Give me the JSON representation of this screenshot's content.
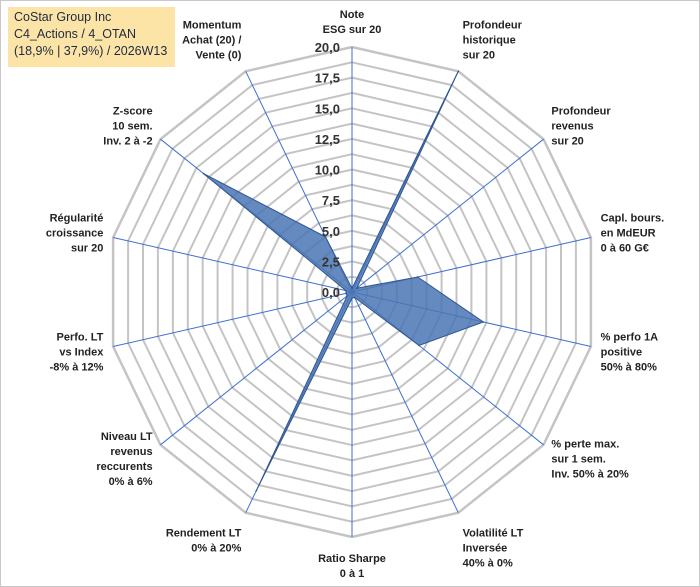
{
  "header": {
    "line1": "CoStar Group Inc",
    "line2": "C4_Actions / 4_OTAN",
    "line3": "(18,9% | 37,9%) / 2026W13"
  },
  "chart_data": {
    "type": "radar",
    "title": "CoStar Group Inc",
    "rlim": [
      0,
      20
    ],
    "ticks": [
      "0,0",
      "2,5",
      "5,0",
      "7,5",
      "10,0",
      "12,5",
      "15,0",
      "17,5",
      "20,0"
    ],
    "tick_values": [
      0,
      2.5,
      5,
      7.5,
      10,
      12.5,
      15,
      17.5,
      20
    ],
    "grid": true,
    "categories": [
      {
        "lines": [
          "Note",
          "ESG sur 20"
        ]
      },
      {
        "lines": [
          "Profondeur",
          "historique",
          "sur 20"
        ]
      },
      {
        "lines": [
          "Profondeur",
          "revenus",
          "sur 20"
        ]
      },
      {
        "lines": [
          "Capl. bours.",
          "en MdEUR",
          "0 à 60 G€"
        ]
      },
      {
        "lines": [
          "% perfo 1A",
          "positive",
          "50% à 80%"
        ]
      },
      {
        "lines": [
          "% perte max.",
          "sur 1 sem.",
          "Inv. 50% à 20%"
        ]
      },
      {
        "lines": [
          "Volatilité LT",
          "Inversée",
          "40% à 0%"
        ]
      },
      {
        "lines": [
          "Ratio Sharpe",
          "0 à 1"
        ]
      },
      {
        "lines": [
          "Rendement LT",
          "0% à 20%"
        ]
      },
      {
        "lines": [
          "Niveau LT",
          "revenus",
          "reccurents",
          "0% à 6%"
        ]
      },
      {
        "lines": [
          "Perfo. LT",
          "vs Index",
          "-8% à 12%"
        ]
      },
      {
        "lines": [
          "Régularité",
          "croissance",
          "sur 20"
        ]
      },
      {
        "lines": [
          "Z-score",
          "10 sem.",
          "Inv. 2 à -2"
        ]
      },
      {
        "lines": [
          "Momentum",
          "Achat (20) /",
          "Vente (0)"
        ]
      }
    ],
    "series": [
      {
        "name": "CoStar Group Inc",
        "values": [
          0.3,
          20.0,
          0.5,
          5.5,
          11.0,
          7.0,
          0.5,
          0.5,
          18.0,
          0.5,
          0.5,
          0.5,
          15.5,
          5.0
        ]
      }
    ],
    "colors": {
      "fill": "#4a76b4",
      "stroke": "#2f5590",
      "grid": "#c4c4c4",
      "spoke": "#3f6fcf"
    }
  }
}
